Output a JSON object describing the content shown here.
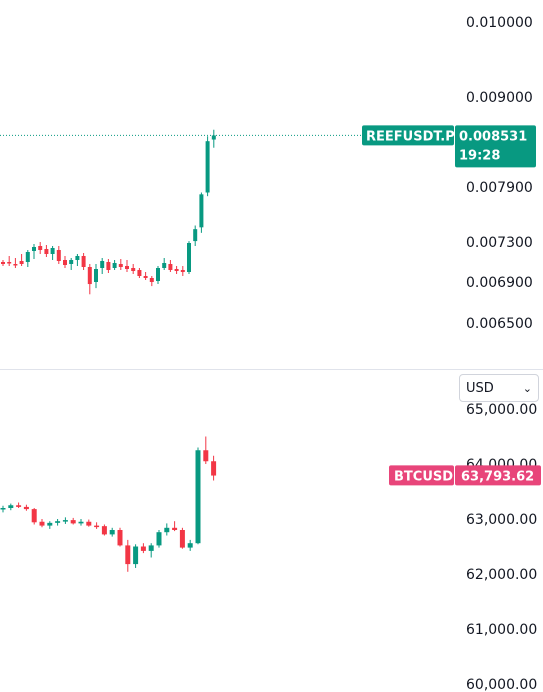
{
  "colors": {
    "up": "#089981",
    "down": "#f23645",
    "tag_top": "#089981",
    "tag_bottom": "#e8457a",
    "text": "#131722",
    "divider": "#e0e3eb"
  },
  "currency_select": {
    "value": "USD",
    "icon": "chevron-down-icon"
  },
  "chart_data": [
    {
      "type": "candlestick",
      "symbol": "REEFUSDT.P",
      "last_price": "0.008531",
      "countdown": "19:28",
      "y_ticks": [
        "0.010000",
        "0.009000",
        "0.007900",
        "0.007300",
        "0.006900",
        "0.006500"
      ],
      "y_tick_values": [
        0.01,
        0.009,
        0.0079,
        0.0073,
        0.0069,
        0.0065
      ],
      "ohlc": [
        [
          0.0071,
          0.00712,
          0.00706,
          0.00708
        ],
        [
          0.0071,
          0.00716,
          0.00706,
          0.00709
        ],
        [
          0.00708,
          0.00714,
          0.00704,
          0.00707
        ],
        [
          0.00711,
          0.00718,
          0.00706,
          0.00708
        ],
        [
          0.0071,
          0.00722,
          0.00705,
          0.0072
        ],
        [
          0.00721,
          0.00728,
          0.00713,
          0.00725
        ],
        [
          0.00726,
          0.0073,
          0.00718,
          0.00722
        ],
        [
          0.00723,
          0.00727,
          0.00715,
          0.00718
        ],
        [
          0.00718,
          0.00726,
          0.00712,
          0.00724
        ],
        [
          0.00722,
          0.00726,
          0.00708,
          0.00711
        ],
        [
          0.00712,
          0.00716,
          0.00704,
          0.00707
        ],
        [
          0.00708,
          0.00714,
          0.00702,
          0.00712
        ],
        [
          0.00712,
          0.00718,
          0.00706,
          0.00716
        ],
        [
          0.00716,
          0.00719,
          0.00702,
          0.00705
        ],
        [
          0.00705,
          0.00708,
          0.00678,
          0.00688
        ],
        [
          0.0069,
          0.00708,
          0.00684,
          0.00703
        ],
        [
          0.00704,
          0.00714,
          0.00698,
          0.00711
        ],
        [
          0.0071,
          0.00713,
          0.00699,
          0.00702
        ],
        [
          0.00704,
          0.00712,
          0.00702,
          0.00709
        ],
        [
          0.00708,
          0.00713,
          0.00702,
          0.00705
        ],
        [
          0.00706,
          0.00712,
          0.007,
          0.00703
        ],
        [
          0.00704,
          0.00708,
          0.00698,
          0.00701
        ],
        [
          0.00702,
          0.00704,
          0.00694,
          0.00696
        ],
        [
          0.00696,
          0.007,
          0.00692,
          0.00694
        ],
        [
          0.00694,
          0.00696,
          0.00686,
          0.0069
        ],
        [
          0.00691,
          0.00706,
          0.00688,
          0.00704
        ],
        [
          0.00704,
          0.00714,
          0.00702,
          0.00709
        ],
        [
          0.00708,
          0.00712,
          0.007,
          0.00702
        ],
        [
          0.00703,
          0.00706,
          0.00698,
          0.00701
        ],
        [
          0.00702,
          0.00706,
          0.00696,
          0.007
        ],
        [
          0.007,
          0.00731,
          0.00698,
          0.00729
        ],
        [
          0.00731,
          0.00748,
          0.00726,
          0.00744
        ],
        [
          0.00746,
          0.00784,
          0.0074,
          0.00782
        ],
        [
          0.00784,
          0.00852,
          0.0078,
          0.00846
        ],
        [
          0.00848,
          0.0086,
          0.00838,
          0.00853
        ]
      ]
    },
    {
      "type": "candlestick",
      "symbol": "BTCUSD",
      "last_price": "63,793.62",
      "y_ticks": [
        "65,000.00",
        "64,000.00",
        "63,000.00",
        "62,000.00",
        "61,000.00",
        "60,000.00"
      ],
      "y_tick_values": [
        65000,
        64000,
        63000,
        62000,
        61000,
        60000
      ],
      "ohlc": [
        [
          63180,
          63240,
          63120,
          63200
        ],
        [
          63200,
          63280,
          63160,
          63250
        ],
        [
          63250,
          63300,
          63200,
          63220
        ],
        [
          63220,
          63260,
          63150,
          63180
        ],
        [
          63180,
          63200,
          62900,
          62940
        ],
        [
          62950,
          63000,
          62850,
          62880
        ],
        [
          62880,
          62960,
          62820,
          62930
        ],
        [
          62930,
          63000,
          62880,
          62960
        ],
        [
          62960,
          63030,
          62910,
          62980
        ],
        [
          62980,
          63020,
          62900,
          62920
        ],
        [
          62920,
          63000,
          62880,
          62950
        ],
        [
          62950,
          62990,
          62860,
          62880
        ],
        [
          62880,
          62940,
          62820,
          62870
        ],
        [
          62870,
          62900,
          62700,
          62720
        ],
        [
          62720,
          62840,
          62680,
          62800
        ],
        [
          62800,
          62840,
          62500,
          62520
        ],
        [
          62520,
          62620,
          62040,
          62180
        ],
        [
          62180,
          62540,
          62110,
          62500
        ],
        [
          62500,
          62560,
          62380,
          62420
        ],
        [
          62420,
          62560,
          62300,
          62520
        ],
        [
          62520,
          62800,
          62480,
          62760
        ],
        [
          62760,
          62920,
          62700,
          62840
        ],
        [
          62840,
          62960,
          62780,
          62800
        ],
        [
          62800,
          62840,
          62460,
          62480
        ],
        [
          62480,
          62620,
          62420,
          62560
        ],
        [
          62560,
          64300,
          62540,
          64250
        ],
        [
          64250,
          64500,
          64000,
          64050
        ],
        [
          64050,
          64150,
          63700,
          63790
        ]
      ]
    }
  ]
}
